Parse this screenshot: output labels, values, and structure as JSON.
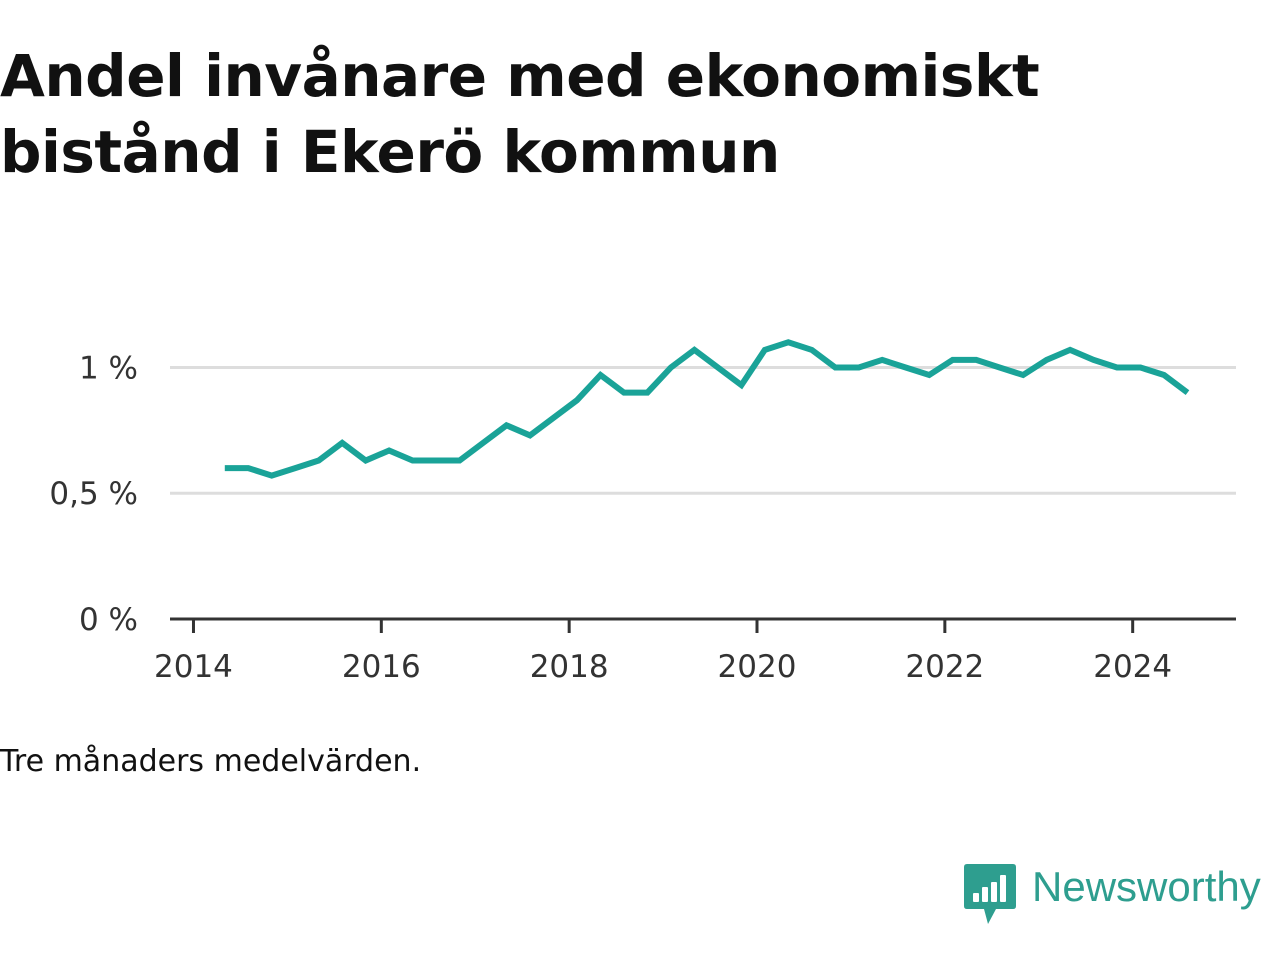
{
  "title_lines": [
    "Andel invånare med ekonomiskt",
    "bistånd i Ekerö kommun"
  ],
  "note": "Tre månaders medelvärden.",
  "brand": {
    "name": "Newsworthy",
    "icon": "newsworthy-logo-icon",
    "color": "#2e9e8f"
  },
  "chart_data": {
    "type": "line",
    "title": "Andel invånare med ekonomiskt bistånd i Ekerö kommun",
    "xlabel": "",
    "ylabel": "",
    "x_tick_labels": [
      "2014",
      "2016",
      "2018",
      "2020",
      "2022",
      "2024"
    ],
    "x_ticks": [
      2014,
      2016,
      2018,
      2020,
      2022,
      2024
    ],
    "y_tick_labels": [
      "0 %",
      "0,5 %",
      "1 %"
    ],
    "y_ticks": [
      0,
      0.5,
      1.0
    ],
    "xlim": [
      2013.75,
      2025.1
    ],
    "ylim": [
      0,
      1.3
    ],
    "grid": "horizontal",
    "line_color": "#1aa398",
    "series": [
      {
        "x": [
          "2014-05",
          "2014-08",
          "2014-11",
          "2015-02",
          "2015-05",
          "2015-08",
          "2015-11",
          "2016-02",
          "2016-05",
          "2016-08",
          "2016-11",
          "2017-02",
          "2017-05",
          "2017-08",
          "2017-11",
          "2018-02",
          "2018-05",
          "2018-08",
          "2018-11",
          "2019-02",
          "2019-05",
          "2019-08",
          "2019-11",
          "2020-02",
          "2020-05",
          "2020-08",
          "2020-11",
          "2021-02",
          "2021-05",
          "2021-08",
          "2021-11",
          "2022-02",
          "2022-05",
          "2022-08",
          "2022-11",
          "2023-02",
          "2023-05",
          "2023-08",
          "2023-11",
          "2024-02",
          "2024-05",
          "2024-08"
        ],
        "values": [
          0.6,
          0.6,
          0.57,
          0.6,
          0.63,
          0.7,
          0.63,
          0.67,
          0.63,
          0.63,
          0.63,
          0.7,
          0.77,
          0.73,
          0.8,
          0.87,
          0.97,
          0.9,
          0.9,
          1.0,
          1.07,
          1.0,
          0.93,
          1.07,
          1.1,
          1.07,
          1.0,
          1.0,
          1.03,
          1.0,
          0.97,
          1.03,
          1.03,
          1.0,
          0.97,
          1.03,
          1.07,
          1.03,
          1.0,
          1.0,
          0.97,
          0.9
        ]
      }
    ]
  }
}
